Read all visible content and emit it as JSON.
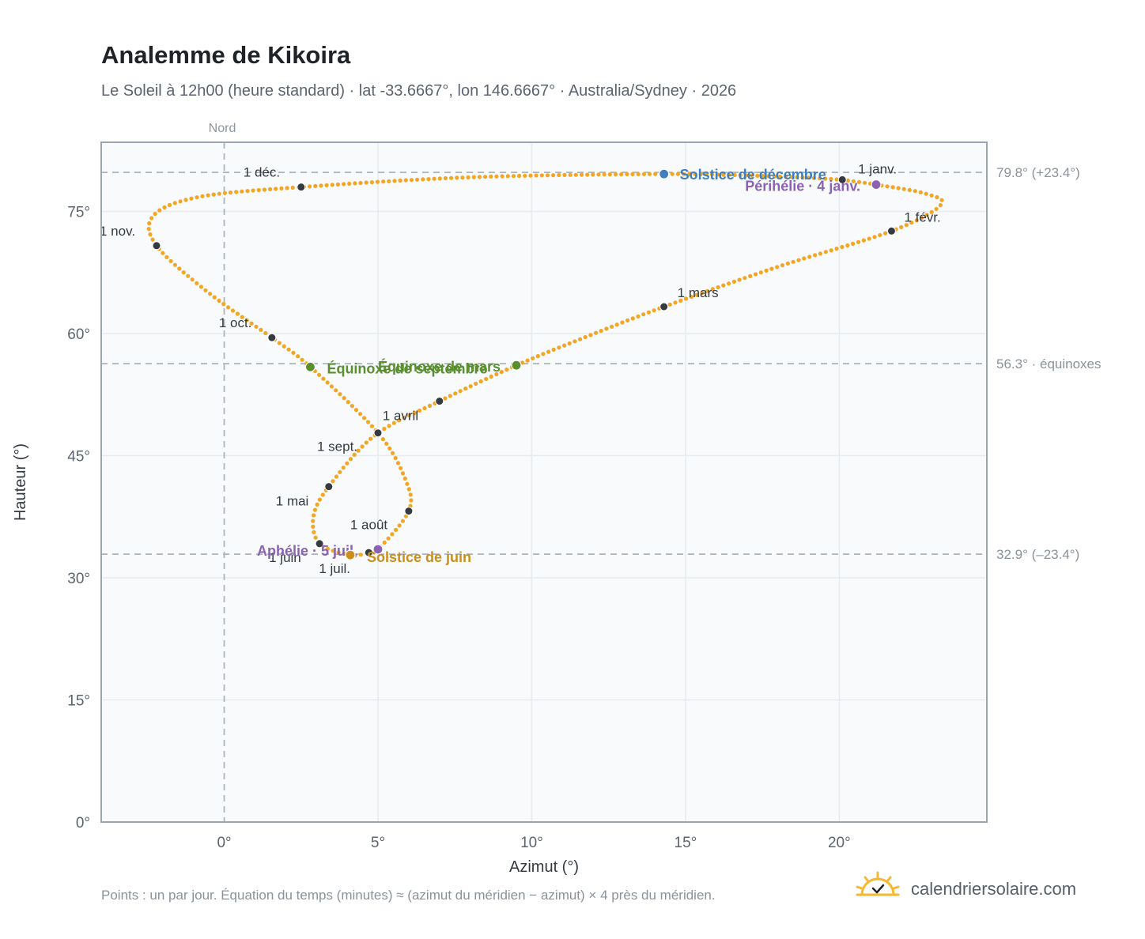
{
  "title": "Analemme de Kikoira",
  "subtitle": "Le Soleil à 12h00 (heure standard) · lat -33.6667°, lon 146.6667° · Australia/Sydney · 2026",
  "footer_note": "Points : un par jour. Équation du temps (minutes) ≈ (azimut du méridien − azimut) × 4 près du méridien.",
  "brand": {
    "name": "calendriersolaire.com",
    "icon": "sun-logo-icon"
  },
  "colors": {
    "curve": "#f2a623",
    "month_dot": "#343a40",
    "equinox": "#5a8f2e",
    "solstice_dec": "#3f7fbf",
    "solstice_jun": "#c98f1a",
    "perihelion": "#8a63b5",
    "grid": "#e6ebef",
    "refline": "#a9b4bd"
  },
  "chart_data": {
    "type": "scatter",
    "xlabel": "Azimut (°)",
    "ylabel": "Hauteur (°)",
    "xlim": [
      -4,
      24.8
    ],
    "ylim": [
      0,
      83.5
    ],
    "xticks": [
      0,
      5,
      10,
      15,
      20
    ],
    "yticks": [
      0,
      15,
      30,
      45,
      60,
      75
    ],
    "xtick_labels": [
      "0°",
      "5°",
      "10°",
      "15°",
      "20°"
    ],
    "ytick_labels": [
      "0°",
      "15°",
      "30°",
      "45°",
      "60°",
      "75°"
    ],
    "grid": true,
    "north_label": "Nord",
    "ref_lines": [
      {
        "value": 79.8,
        "label": "79.8° (+23.4°)"
      },
      {
        "value": 56.3,
        "label": "56.3° · équinoxes"
      },
      {
        "value": 32.9,
        "label": "32.9° (–23.4°)"
      }
    ],
    "month_points": [
      {
        "label": "1 janv.",
        "x": 20.1,
        "y": 78.9,
        "label_dx": 20,
        "label_dy": -8
      },
      {
        "label": "1 févr.",
        "x": 21.7,
        "y": 72.6,
        "label_dx": 16,
        "label_dy": -12
      },
      {
        "label": "1 mars",
        "x": 14.3,
        "y": 63.3,
        "label_dx": 17,
        "label_dy": -12
      },
      {
        "label": "1 avril",
        "x": 7.0,
        "y": 51.7,
        "label_dx": -72,
        "label_dy": 24
      },
      {
        "label": "1 mai",
        "x": 3.4,
        "y": 41.2,
        "label_dx": -67,
        "label_dy": 24
      },
      {
        "label": "1 juin",
        "x": 3.1,
        "y": 34.2,
        "label_dx": -64,
        "label_dy": 23
      },
      {
        "label": "1 juil.",
        "x": 4.7,
        "y": 33.1,
        "label_dx": -63,
        "label_dy": 26
      },
      {
        "label": "1 août",
        "x": 6.0,
        "y": 38.2,
        "label_dx": -74,
        "label_dy": 23
      },
      {
        "label": "1 sept.",
        "x": 5.0,
        "y": 47.8,
        "label_dx": -77,
        "label_dy": 23
      },
      {
        "label": "1 oct.",
        "x": 1.55,
        "y": 59.5,
        "label_dx": -67,
        "label_dy": -13
      },
      {
        "label": "1 nov.",
        "x": -2.2,
        "y": 70.8,
        "label_dx": -72,
        "label_dy": -13
      },
      {
        "label": "1 déc.",
        "x": 2.5,
        "y": 78.0,
        "label_dx": -73,
        "label_dy": -13
      }
    ],
    "events": [
      {
        "label": "Solstice de décembre",
        "x": 14.3,
        "y": 79.6,
        "color": "#3f7fbf",
        "anchor": "start",
        "dx": 20,
        "dy": 7
      },
      {
        "label": "Périhélie · 4 janv.",
        "x": 21.2,
        "y": 78.3,
        "color": "#8a63b5",
        "anchor": "end",
        "dx": -20,
        "dy": 8
      },
      {
        "label": "Équinoxe de mars",
        "x": 9.5,
        "y": 56.1,
        "color": "#5a8f2e",
        "anchor": "end",
        "dx": -20,
        "dy": 8
      },
      {
        "label": "Équinoxe de septembre",
        "x": 2.8,
        "y": 55.9,
        "color": "#5a8f2e",
        "anchor": "start",
        "dx": 21,
        "dy": 8
      },
      {
        "label": "Aphélie · 5 juil.",
        "x": 5.0,
        "y": 33.5,
        "color": "#8a63b5",
        "anchor": "end",
        "dx": -26,
        "dy": 8
      },
      {
        "label": "Solstice de juin",
        "x": 4.1,
        "y": 32.8,
        "color": "#c98f1a",
        "anchor": "start",
        "dx": 21,
        "dy": 9
      }
    ],
    "curve": [
      {
        "x": 20.1,
        "y": 78.9
      },
      {
        "x": 21.2,
        "y": 78.3
      },
      {
        "x": 22.8,
        "y": 77.2
      },
      {
        "x": 23.3,
        "y": 75.8
      },
      {
        "x": 21.7,
        "y": 72.6
      },
      {
        "x": 18.0,
        "y": 68.2
      },
      {
        "x": 14.3,
        "y": 63.3
      },
      {
        "x": 11.5,
        "y": 59.2
      },
      {
        "x": 9.5,
        "y": 56.1
      },
      {
        "x": 7.0,
        "y": 51.7
      },
      {
        "x": 4.9,
        "y": 47.5
      },
      {
        "x": 3.4,
        "y": 41.2
      },
      {
        "x": 2.9,
        "y": 37.5
      },
      {
        "x": 3.1,
        "y": 34.2
      },
      {
        "x": 4.1,
        "y": 32.8
      },
      {
        "x": 4.7,
        "y": 33.1
      },
      {
        "x": 5.0,
        "y": 33.5
      },
      {
        "x": 6.0,
        "y": 38.2
      },
      {
        "x": 5.9,
        "y": 42.0
      },
      {
        "x": 5.0,
        "y": 47.8
      },
      {
        "x": 2.8,
        "y": 55.9
      },
      {
        "x": 1.55,
        "y": 59.5
      },
      {
        "x": -0.5,
        "y": 65.0
      },
      {
        "x": -2.2,
        "y": 70.8
      },
      {
        "x": -2.3,
        "y": 74.5
      },
      {
        "x": -0.8,
        "y": 76.8
      },
      {
        "x": 2.5,
        "y": 78.0
      },
      {
        "x": 8.0,
        "y": 79.2
      },
      {
        "x": 14.3,
        "y": 79.6
      },
      {
        "x": 18.0,
        "y": 79.3
      },
      {
        "x": 20.1,
        "y": 78.9
      }
    ]
  }
}
